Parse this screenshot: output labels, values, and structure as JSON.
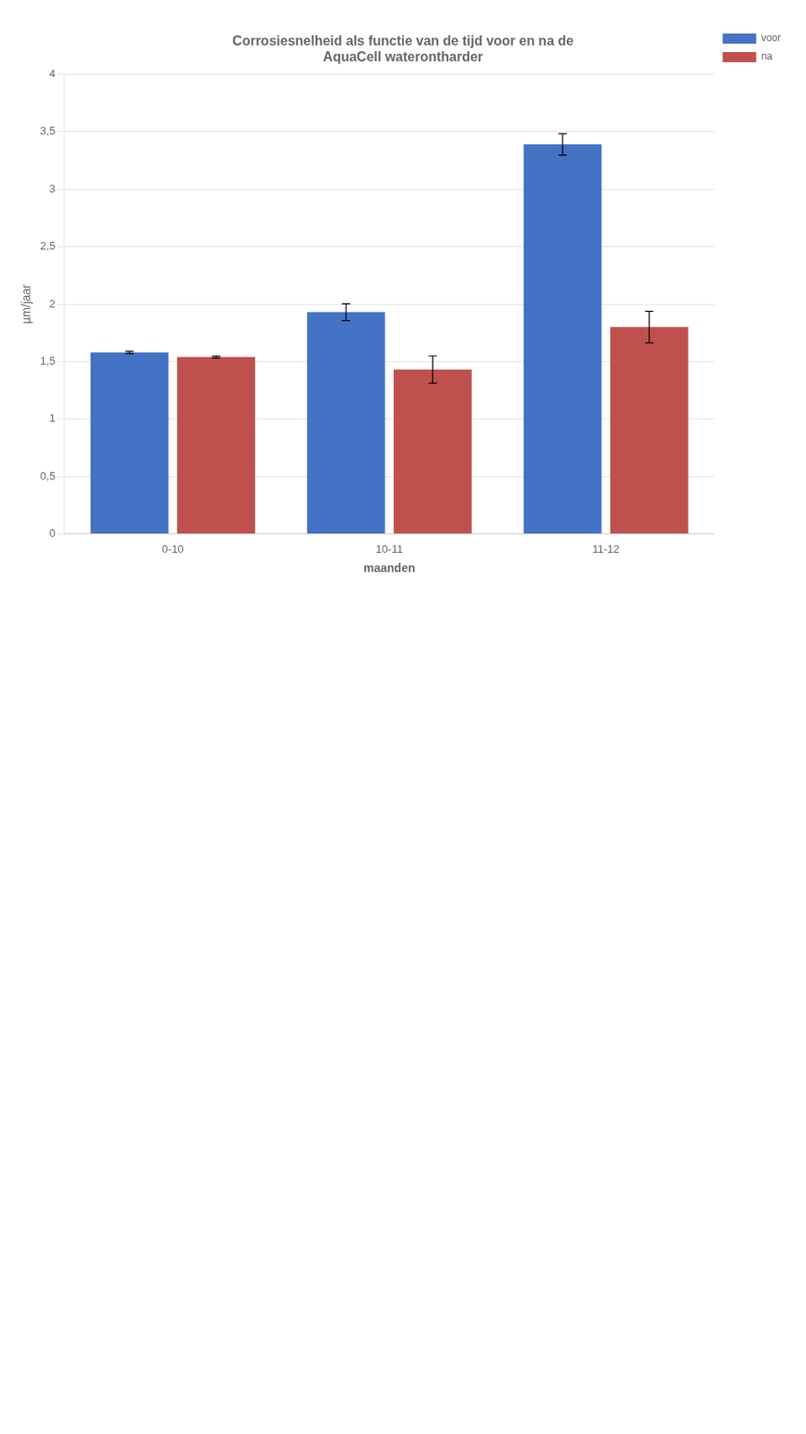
{
  "chart_data": {
    "type": "bar",
    "title": "Corrosiesnelheid als functie van de tijd voor en na de\nAquaCell waterontharder",
    "categories": [
      "0-10",
      "10-11",
      "11-12"
    ],
    "xlabel": "maanden",
    "ylabel": "µm/jaar",
    "ylim": [
      0,
      4
    ],
    "yticks": [
      0,
      {
        "value": 0.5,
        "label": "0,5"
      },
      1,
      {
        "value": 1.5,
        "label": "1,5"
      },
      2,
      {
        "value": 2.5,
        "label": "2,5"
      },
      3,
      {
        "value": 3.5,
        "label": "3,5"
      },
      4
    ],
    "grid": true,
    "legend": "right",
    "series": [
      {
        "name": "voor",
        "color": "#4472C4",
        "values": [
          1.58,
          1.93,
          3.39
        ],
        "errors": [
          0.0104,
          0.0732,
          0.0936
        ]
      },
      {
        "name": "na",
        "color": "#C0504D",
        "values": [
          1.54,
          1.43,
          1.8
        ],
        "errors": [
          0.0084,
          0.1186,
          0.1366
        ]
      }
    ]
  }
}
